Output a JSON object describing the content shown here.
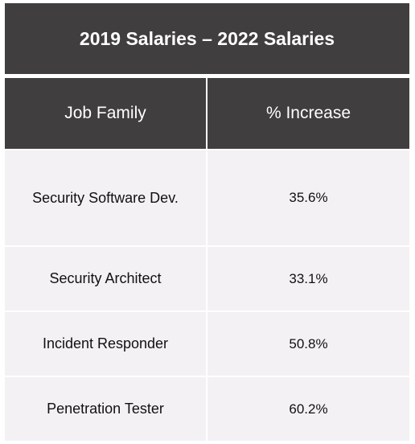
{
  "chart_data": {
    "type": "table",
    "title": "2019 Salaries – 2022 Salaries",
    "columns": [
      "Job Family",
      "% Increase"
    ],
    "rows": [
      {
        "job_family": "Security Software Dev.",
        "increase": "35.6%"
      },
      {
        "job_family": "Security Architect",
        "increase": "33.1%"
      },
      {
        "job_family": "Incident Responder",
        "increase": "50.8%"
      },
      {
        "job_family": "Penetration Tester",
        "increase": "60.2%"
      }
    ],
    "colors": {
      "header": "#403e3f",
      "cell": "#f3f1f4",
      "header_text": "#ffffff"
    }
  }
}
